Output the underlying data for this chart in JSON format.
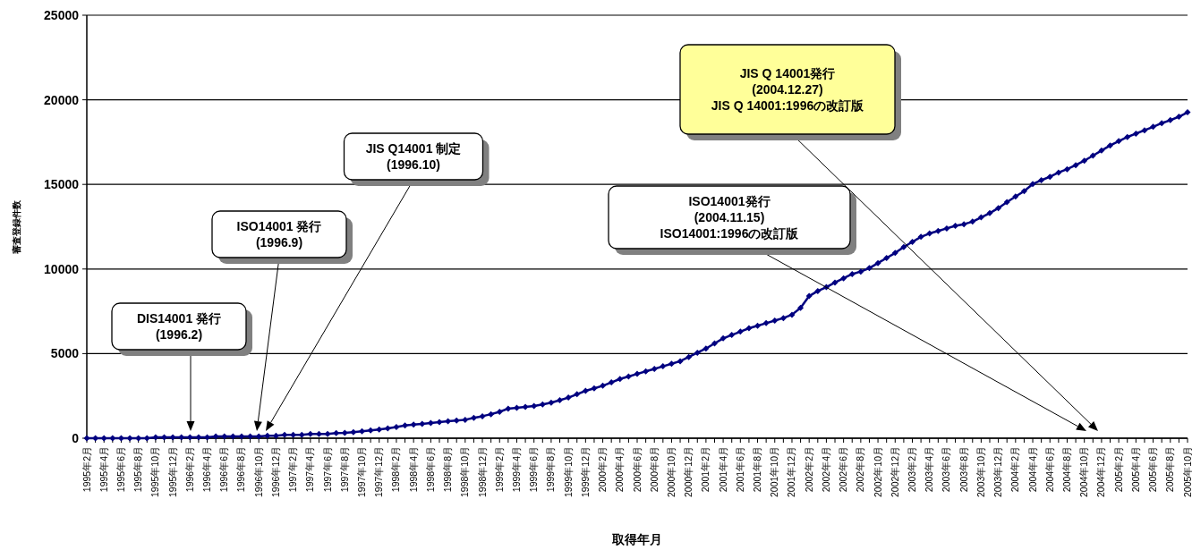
{
  "chart_data": {
    "type": "line",
    "xlabel": "取得年月",
    "ylabel": "審査登録件数",
    "ylim": [
      0,
      25000
    ],
    "yticks": [
      0,
      5000,
      10000,
      15000,
      20000,
      25000
    ],
    "grid": "y",
    "marker": "diamond",
    "xlim": [
      "1995-02",
      "2005-10"
    ],
    "x": [
      "1995-02",
      "1995-03",
      "1995-04",
      "1995-05",
      "1995-06",
      "1995-07",
      "1995-08",
      "1995-09",
      "1995-10",
      "1995-11",
      "1995-12",
      "1996-01",
      "1996-02",
      "1996-03",
      "1996-04",
      "1996-05",
      "1996-06",
      "1996-07",
      "1996-08",
      "1996-09",
      "1996-10",
      "1996-11",
      "1996-12",
      "1997-01",
      "1997-02",
      "1997-03",
      "1997-04",
      "1997-05",
      "1997-06",
      "1997-07",
      "1997-08",
      "1997-09",
      "1997-10",
      "1997-11",
      "1997-12",
      "1998-01",
      "1998-02",
      "1998-03",
      "1998-04",
      "1998-05",
      "1998-06",
      "1998-07",
      "1998-08",
      "1998-09",
      "1998-10",
      "1998-11",
      "1998-12",
      "1999-01",
      "1999-02",
      "1999-03",
      "1999-04",
      "1999-05",
      "1999-06",
      "1999-07",
      "1999-08",
      "1999-09",
      "1999-10",
      "1999-11",
      "1999-12",
      "2000-01",
      "2000-02",
      "2000-03",
      "2000-04",
      "2000-05",
      "2000-06",
      "2000-07",
      "2000-08",
      "2000-09",
      "2000-10",
      "2000-11",
      "2000-12",
      "2001-01",
      "2001-02",
      "2001-03",
      "2001-04",
      "2001-05",
      "2001-06",
      "2001-07",
      "2001-08",
      "2001-09",
      "2001-10",
      "2001-11",
      "2001-12",
      "2002-01",
      "2002-02",
      "2002-03",
      "2002-04",
      "2002-05",
      "2002-06",
      "2002-07",
      "2002-08",
      "2002-09",
      "2002-10",
      "2002-11",
      "2002-12",
      "2003-01",
      "2003-02",
      "2003-03",
      "2003-04",
      "2003-05",
      "2003-06",
      "2003-07",
      "2003-08",
      "2003-09",
      "2003-10",
      "2003-11",
      "2003-12",
      "2004-01",
      "2004-02",
      "2004-03",
      "2004-04",
      "2004-05",
      "2004-06",
      "2004-07",
      "2004-08",
      "2004-09",
      "2004-10",
      "2004-11",
      "2004-12",
      "2005-01",
      "2005-02",
      "2005-03",
      "2005-04",
      "2005-05",
      "2005-06",
      "2005-07",
      "2005-08",
      "2005-09",
      "2005-10"
    ],
    "series": [
      {
        "color": "#000080",
        "values": [
          0,
          0,
          0,
          0,
          0,
          0,
          0,
          0,
          50,
          50,
          50,
          50,
          50,
          50,
          50,
          100,
          100,
          100,
          100,
          100,
          100,
          150,
          150,
          200,
          200,
          200,
          250,
          250,
          250,
          300,
          320,
          360,
          410,
          460,
          520,
          580,
          660,
          750,
          800,
          850,
          900,
          950,
          1000,
          1050,
          1090,
          1200,
          1300,
          1420,
          1560,
          1750,
          1800,
          1850,
          1900,
          2000,
          2100,
          2250,
          2400,
          2600,
          2800,
          2950,
          3100,
          3300,
          3500,
          3650,
          3800,
          3950,
          4100,
          4250,
          4400,
          4550,
          4800,
          5050,
          5300,
          5600,
          5900,
          6100,
          6300,
          6500,
          6650,
          6800,
          6950,
          7100,
          7300,
          7700,
          8400,
          8700,
          8930,
          9200,
          9450,
          9700,
          9850,
          10050,
          10350,
          10650,
          10950,
          11300,
          11600,
          11900,
          12100,
          12250,
          12400,
          12550,
          12650,
          12800,
          13050,
          13300,
          13600,
          13950,
          14280,
          14600,
          15020,
          15250,
          15450,
          15700,
          15900,
          16140,
          16400,
          16700,
          17000,
          17300,
          17560,
          17800,
          18000,
          18200,
          18400,
          18620,
          18800,
          19000,
          19260
        ]
      }
    ],
    "xticks": [
      {
        "value": "1995-02",
        "label": "1995年2月"
      },
      {
        "value": "1995-03",
        "label": null
      },
      {
        "value": "1995-04",
        "label": "1995年4月"
      },
      {
        "value": "1995-05",
        "label": null
      },
      {
        "value": "1995-06",
        "label": "1995年6月"
      },
      {
        "value": "1995-07",
        "label": null
      },
      {
        "value": "1995-08",
        "label": "1995年8月"
      },
      {
        "value": "1995-09",
        "label": null
      },
      {
        "value": "1995-10",
        "label": "1995年10月"
      },
      {
        "value": "1995-11",
        "label": null
      },
      {
        "value": "1995-12",
        "label": "1995年12月"
      },
      {
        "value": "1996-01",
        "label": null
      },
      {
        "value": "1996-02",
        "label": "1996年2月"
      },
      {
        "value": "1996-03",
        "label": null
      },
      {
        "value": "1996-04",
        "label": "1996年4月"
      },
      {
        "value": "1996-05",
        "label": null
      },
      {
        "value": "1996-06",
        "label": "1996年6月"
      },
      {
        "value": "1996-07",
        "label": null
      },
      {
        "value": "1996-08",
        "label": "1996年8月"
      },
      {
        "value": "1996-09",
        "label": null
      },
      {
        "value": "1996-10",
        "label": "1996年10月"
      },
      {
        "value": "1996-11",
        "label": null
      },
      {
        "value": "1996-12",
        "label": "1996年12月"
      },
      {
        "value": "1997-01",
        "label": null
      },
      {
        "value": "1997-02",
        "label": "1997年2月"
      },
      {
        "value": "1997-03",
        "label": null
      },
      {
        "value": "1997-04",
        "label": "1997年4月"
      },
      {
        "value": "1997-05",
        "label": null
      },
      {
        "value": "1997-06",
        "label": "1997年6月"
      },
      {
        "value": "1997-07",
        "label": null
      },
      {
        "value": "1997-08",
        "label": "1997年8月"
      },
      {
        "value": "1997-09",
        "label": null
      },
      {
        "value": "1997-10",
        "label": "1997年10月"
      },
      {
        "value": "1997-11",
        "label": null
      },
      {
        "value": "1997-12",
        "label": "1997年12月"
      },
      {
        "value": "1998-01",
        "label": null
      },
      {
        "value": "1998-02",
        "label": "1998年2月"
      },
      {
        "value": "1998-03",
        "label": null
      },
      {
        "value": "1998-04",
        "label": "1998年4月"
      },
      {
        "value": "1998-05",
        "label": null
      },
      {
        "value": "1998-06",
        "label": "1998年6月"
      },
      {
        "value": "1998-07",
        "label": null
      },
      {
        "value": "1998-08",
        "label": "1998年8月"
      },
      {
        "value": "1998-09",
        "label": null
      },
      {
        "value": "1998-10",
        "label": "1998年10月"
      },
      {
        "value": "1998-11",
        "label": null
      },
      {
        "value": "1998-12",
        "label": "1998年12月"
      },
      {
        "value": "1999-01",
        "label": null
      },
      {
        "value": "1999-02",
        "label": "1999年2月"
      },
      {
        "value": "1999-03",
        "label": null
      },
      {
        "value": "1999-04",
        "label": "1999年4月"
      },
      {
        "value": "1999-05",
        "label": null
      },
      {
        "value": "1999-06",
        "label": "1999年6月"
      },
      {
        "value": "1999-07",
        "label": null
      },
      {
        "value": "1999-08",
        "label": "1999年8月"
      },
      {
        "value": "1999-09",
        "label": null
      },
      {
        "value": "1999-10",
        "label": "1999年10月"
      },
      {
        "value": "1999-11",
        "label": null
      },
      {
        "value": "1999-12",
        "label": "1999年12月"
      },
      {
        "value": "2000-01",
        "label": null
      },
      {
        "value": "2000-02",
        "label": "2000年2月"
      },
      {
        "value": "2000-03",
        "label": null
      },
      {
        "value": "2000-04",
        "label": "2000年4月"
      },
      {
        "value": "2000-05",
        "label": null
      },
      {
        "value": "2000-06",
        "label": "2000年6月"
      },
      {
        "value": "2000-07",
        "label": null
      },
      {
        "value": "2000-08",
        "label": "2000年8月"
      },
      {
        "value": "2000-09",
        "label": null
      },
      {
        "value": "2000-10",
        "label": "2000年10月"
      },
      {
        "value": "2000-11",
        "label": null
      },
      {
        "value": "2000-12",
        "label": "2000年12月"
      },
      {
        "value": "2001-01",
        "label": null
      },
      {
        "value": "2001-02",
        "label": "2001年2月"
      },
      {
        "value": "2001-03",
        "label": null
      },
      {
        "value": "2001-04",
        "label": "2001年4月"
      },
      {
        "value": "2001-05",
        "label": null
      },
      {
        "value": "2001-06",
        "label": "2001年6月"
      },
      {
        "value": "2001-07",
        "label": null
      },
      {
        "value": "2001-08",
        "label": "2001年8月"
      },
      {
        "value": "2001-09",
        "label": null
      },
      {
        "value": "2001-10",
        "label": "2001年10月"
      },
      {
        "value": "2001-11",
        "label": null
      },
      {
        "value": "2001-12",
        "label": "2001年12月"
      },
      {
        "value": "2002-01",
        "label": null
      },
      {
        "value": "2002-02",
        "label": "2002年2月"
      },
      {
        "value": "2002-03",
        "label": null
      },
      {
        "value": "2002-04",
        "label": "2002年4月"
      },
      {
        "value": "2002-05",
        "label": null
      },
      {
        "value": "2002-06",
        "label": "2002年6月"
      },
      {
        "value": "2002-07",
        "label": null
      },
      {
        "value": "2002-08",
        "label": "2002年8月"
      },
      {
        "value": "2002-09",
        "label": null
      },
      {
        "value": "2002-10",
        "label": "2002年10月"
      },
      {
        "value": "2002-11",
        "label": null
      },
      {
        "value": "2002-12",
        "label": "2002年12月"
      },
      {
        "value": "2003-01",
        "label": null
      },
      {
        "value": "2003-02",
        "label": "2003年2月"
      },
      {
        "value": "2003-03",
        "label": null
      },
      {
        "value": "2003-04",
        "label": "2003年4月"
      },
      {
        "value": "2003-05",
        "label": null
      },
      {
        "value": "2003-06",
        "label": "2003年6月"
      },
      {
        "value": "2003-07",
        "label": null
      },
      {
        "value": "2003-08",
        "label": "2003年8月"
      },
      {
        "value": "2003-09",
        "label": null
      },
      {
        "value": "2003-10",
        "label": "2003年10月"
      },
      {
        "value": "2003-11",
        "label": null
      },
      {
        "value": "2003-12",
        "label": "2003年12月"
      },
      {
        "value": "2004-01",
        "label": null
      },
      {
        "value": "2004-02",
        "label": "2004年2月"
      },
      {
        "value": "2004-03",
        "label": null
      },
      {
        "value": "2004-04",
        "label": "2004年4月"
      },
      {
        "value": "2004-05",
        "label": null
      },
      {
        "value": "2004-06",
        "label": "2004年6月"
      },
      {
        "value": "2004-07",
        "label": null
      },
      {
        "value": "2004-08",
        "label": "2004年8月"
      },
      {
        "value": "2004-09",
        "label": null
      },
      {
        "value": "2004-10",
        "label": "2004年10月"
      },
      {
        "value": "2004-11",
        "label": null
      },
      {
        "value": "2004-12",
        "label": "2004年12月"
      },
      {
        "value": "2005-01",
        "label": null
      },
      {
        "value": "2005-02",
        "label": "2005年2月"
      },
      {
        "value": "2005-03",
        "label": null
      },
      {
        "value": "2005-04",
        "label": "2005年4月"
      },
      {
        "value": "2005-05",
        "label": null
      },
      {
        "value": "2005-06",
        "label": "2005年6月"
      },
      {
        "value": "2005-07",
        "label": null
      },
      {
        "value": "2005-08",
        "label": "2005年8月"
      },
      {
        "value": "2005-09",
        "label": null
      },
      {
        "value": "2005-10",
        "label": "2005年10月"
      }
    ],
    "annotations": [
      "DIS14001 発行\n(1996.2)",
      "ISO14001 発行\n(1996.9)",
      "JIS Q14001 制定\n(1996.10)",
      "ISO14001発行\n(2004.11.15)\nISO14001:1996の改訂版",
      "JIS Q 14001発行\n(2004.12.27)\nJIS Q 14001:1996の改訂版"
    ]
  }
}
